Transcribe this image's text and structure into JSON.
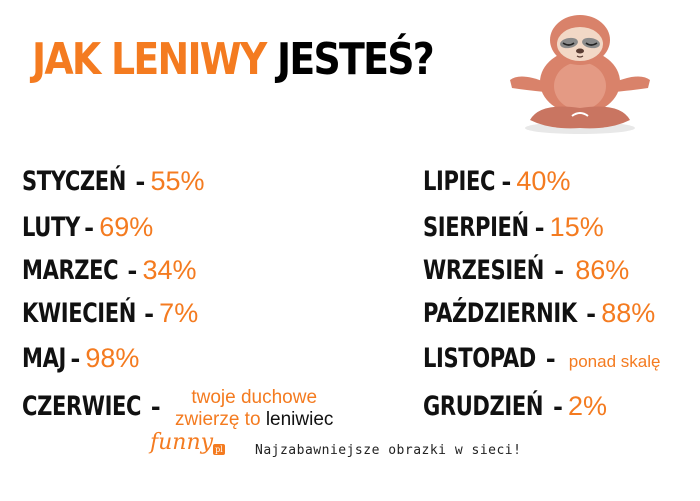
{
  "title": {
    "part1": "JAK LENIWY",
    "part2": "JESTEŚ?"
  },
  "left": [
    {
      "month": "STYCZEŃ",
      "value": "55%"
    },
    {
      "month": "LUTY",
      "value": "69%"
    },
    {
      "month": "MARZEC",
      "value": "34%"
    },
    {
      "month": "KWIECIEŃ",
      "value": "7%"
    },
    {
      "month": "MAJ",
      "value": "98%"
    },
    {
      "month": "CZERWIEC"
    }
  ],
  "czerwiec_note": {
    "line1": "twoje duchowe",
    "line2_orange": "zwierzę to",
    "line2_black": "leniwiec"
  },
  "right": [
    {
      "month": "LIPIEC",
      "value": "40%"
    },
    {
      "month": "SIERPIEŃ",
      "value": "15%"
    },
    {
      "month": "WRZESIEŃ",
      "value": "86%"
    },
    {
      "month": "PAŹDZIERNIK",
      "value": "88%"
    },
    {
      "month": "LISTOPAD",
      "value": "ponad skalę"
    },
    {
      "month": "GRUDZIEŃ",
      "value": "2%"
    }
  ],
  "dash": "-",
  "footer": {
    "logo": "funny",
    "logo_badge": "pl",
    "tagline": "Najzabawniejsze obrazki w sieci!"
  },
  "colors": {
    "accent": "#f47b20",
    "text": "#111111",
    "sloth": "#d9826a"
  },
  "icons": {
    "sloth": "sloth-illustration"
  }
}
